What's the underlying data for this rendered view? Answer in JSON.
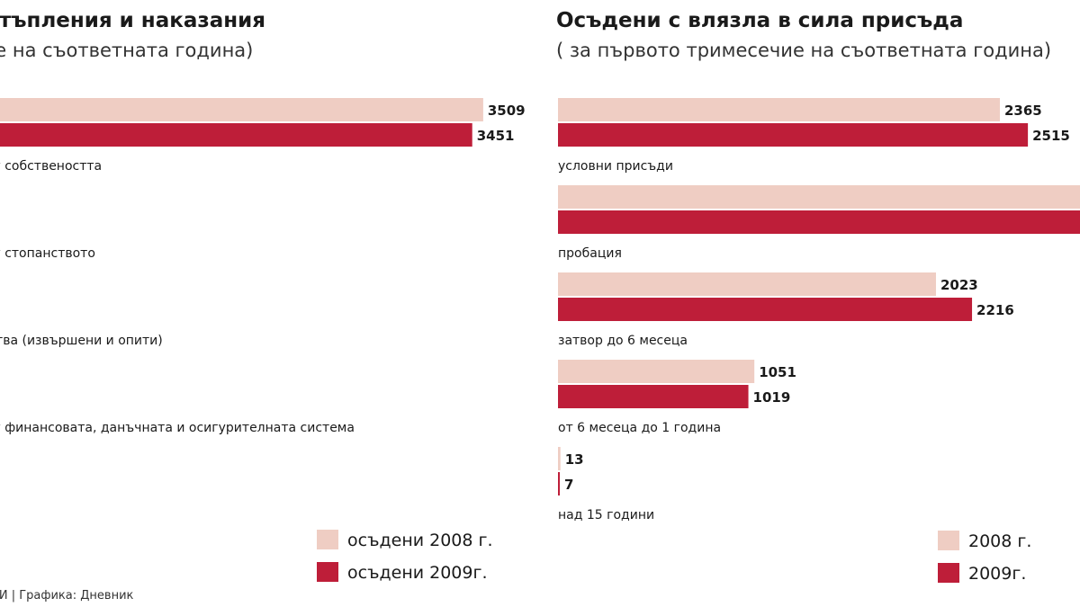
{
  "colors": {
    "series_2008": "#efcdc3",
    "series_2009": "#be1e39"
  },
  "source": "НСИ | Графика: Дневник",
  "chart_data": [
    {
      "type": "bar",
      "orientation": "horizontal",
      "title": "Престъпления и наказания",
      "subtitle": "(за първото тримесечие на съответната година)",
      "categories": [
        "Срещу собствеността",
        "Срещу стопанството",
        "Убийства (извършени и опити)",
        "Срещу финансовата, данъчната и осигурителната система"
      ],
      "series": [
        {
          "name": "осъдени 2008 г.",
          "values": [
            3509,
            null,
            null,
            null
          ]
        },
        {
          "name": "осъдени 2009г.",
          "values": [
            3451,
            null,
            null,
            null
          ]
        }
      ],
      "legend": "bottom-right",
      "grid": false
    },
    {
      "type": "bar",
      "orientation": "horizontal",
      "title": "Осъдени с влязла в сила присъда",
      "subtitle": "( за първото тримесечие на съответната година)",
      "categories": [
        "условни присъди",
        "пробация",
        "затвор до 6 месеца",
        "от 6 месеца до 1 година",
        "над 15 години"
      ],
      "series": [
        {
          "name": "2008 г.",
          "values": [
            2365,
            null,
            2023,
            1051,
            13
          ]
        },
        {
          "name": "2009г.",
          "values": [
            2515,
            null,
            2216,
            1019,
            7
          ]
        }
      ],
      "legend": "bottom-right",
      "grid": false
    }
  ]
}
